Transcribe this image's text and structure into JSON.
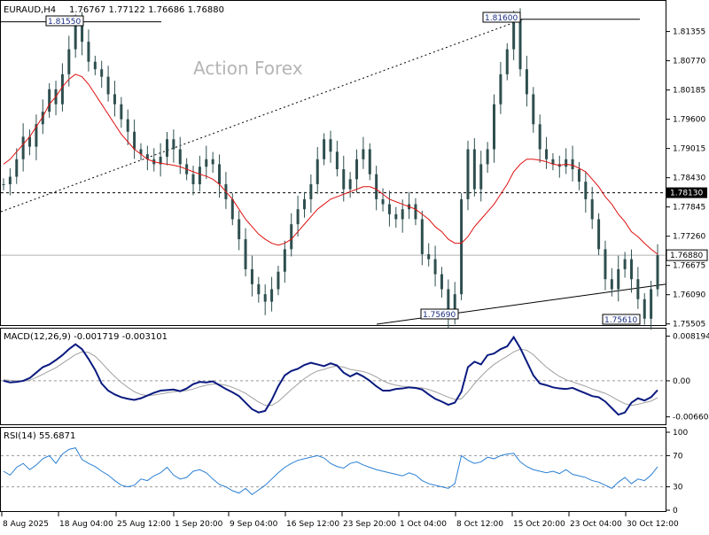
{
  "header": {
    "symbol": "EURAUD,H4",
    "ohlc": "1.76767 1.77122 1.76686 1.76880"
  },
  "watermark": "Action Forex",
  "colors": {
    "candle": "#2f4f4f",
    "ma": "#e01010",
    "macd": "#0a1a80",
    "signal": "#a0a0a0",
    "rsi": "#2a7fd4",
    "grid": "#000000",
    "price_line": "#b0b0b0"
  },
  "chart_data": [
    {
      "type": "line",
      "name": "price",
      "ylim": [
        1.755,
        1.8195
      ],
      "y_ticks": [
        "1.81355",
        "1.80770",
        "1.80185",
        "1.79600",
        "1.79015",
        "1.78430",
        "1.77845",
        "1.77260",
        "1.76675",
        "1.76090",
        "1.75505"
      ],
      "current_price_label": "1.76880",
      "level_label": "1.78130",
      "level_value": 1.7813,
      "annotations": [
        "1.81550",
        "1.81600",
        "1.75690",
        "1.75610"
      ],
      "x_ticks": [
        "8 Aug 2025",
        "18 Aug 04:00",
        "25 Aug 12:00",
        "1 Sep 20:00",
        "9 Sep 04:00",
        "16 Sep 12:00",
        "23 Sep 20:00",
        "1 Oct 04:00",
        "8 Oct 12:00",
        "15 Oct 20:00",
        "23 Oct 04:00",
        "30 Oct 12:00"
      ],
      "series": [
        {
          "values": [
            1.783,
            1.7845,
            1.788,
            1.7925,
            1.7905,
            1.795,
            1.7975,
            1.802,
            1.799,
            1.805,
            1.81,
            1.8155,
            1.8115,
            1.8075,
            1.806,
            1.8045,
            1.801,
            1.799,
            1.796,
            1.7935,
            1.79,
            1.789,
            1.788,
            1.787,
            1.7885,
            1.792,
            1.79,
            1.787,
            1.785,
            1.783,
            1.7865,
            1.788,
            1.787,
            1.783,
            1.78,
            1.776,
            1.772,
            1.766,
            1.763,
            1.761,
            1.7595,
            1.762,
            1.7655,
            1.77,
            1.775,
            1.778,
            1.78,
            1.783,
            1.788,
            1.792,
            1.7895,
            1.786,
            1.782,
            1.784,
            1.788,
            1.79,
            1.785,
            1.78,
            1.779,
            1.777,
            1.776,
            1.778,
            1.779,
            1.776,
            1.769,
            1.768,
            1.765,
            1.762,
            1.7569,
            1.761,
            1.78,
            1.79,
            1.782,
            1.787,
            1.79,
            1.799,
            1.805,
            1.81,
            1.816,
            1.806,
            1.801,
            1.795,
            1.79,
            1.788,
            1.787,
            1.7865,
            1.788,
            1.786,
            1.7835,
            1.78,
            1.776,
            1.77,
            1.764,
            1.762,
            1.766,
            1.768,
            1.764,
            1.76,
            1.7561,
            1.762,
            1.7688
          ]
        },
        {
          "name": "MA",
          "values": [
            1.787,
            1.788,
            1.7895,
            1.791,
            1.7925,
            1.7945,
            1.7965,
            1.799,
            1.8005,
            1.8025,
            1.804,
            1.805,
            1.8045,
            1.803,
            1.801,
            1.799,
            1.797,
            1.795,
            1.793,
            1.7915,
            1.79,
            1.789,
            1.788,
            1.7875,
            1.7872,
            1.787,
            1.7868,
            1.7865,
            1.786,
            1.7855,
            1.785,
            1.7846,
            1.784,
            1.783,
            1.7815,
            1.78,
            1.778,
            1.776,
            1.7745,
            1.773,
            1.772,
            1.7712,
            1.7708,
            1.7712,
            1.772,
            1.7735,
            1.775,
            1.7765,
            1.778,
            1.779,
            1.78,
            1.7805,
            1.781,
            1.7815,
            1.782,
            1.7825,
            1.7825,
            1.782,
            1.781,
            1.78,
            1.7795,
            1.779,
            1.7785,
            1.778,
            1.777,
            1.776,
            1.7745,
            1.7735,
            1.772,
            1.7712,
            1.7712,
            1.7725,
            1.7745,
            1.776,
            1.7775,
            1.779,
            1.781,
            1.783,
            1.7855,
            1.787,
            1.788,
            1.788,
            1.7878,
            1.7875,
            1.787,
            1.7868,
            1.787,
            1.7868,
            1.7862,
            1.7855,
            1.784,
            1.7825,
            1.7805,
            1.779,
            1.777,
            1.7755,
            1.7735,
            1.7725,
            1.7712,
            1.77,
            1.769
          ]
        }
      ]
    },
    {
      "type": "line",
      "title": "MACD(12,26,9) -0.001719 -0.003101",
      "ylim": [
        -0.0078,
        0.0094
      ],
      "y_ticks": [
        "0.008194",
        "0.00",
        "-0.006604"
      ],
      "series": [
        {
          "name": "MACD",
          "values": [
            0.0,
            -0.0003,
            -0.0002,
            0.0,
            0.0005,
            0.0015,
            0.0025,
            0.003,
            0.0038,
            0.0047,
            0.0058,
            0.0067,
            0.0058,
            0.004,
            0.002,
            -0.0005,
            -0.0018,
            -0.0025,
            -0.003,
            -0.0033,
            -0.0035,
            -0.0032,
            -0.0027,
            -0.0022,
            -0.0018,
            -0.0017,
            -0.0016,
            -0.0019,
            -0.0014,
            -0.0006,
            -0.0002,
            -0.0003,
            -0.0001,
            -0.0008,
            -0.0015,
            -0.0021,
            -0.0028,
            -0.004,
            -0.0052,
            -0.0058,
            -0.0055,
            -0.0035,
            -0.001,
            0.001,
            0.0018,
            0.0022,
            0.0029,
            0.0033,
            0.003,
            0.0027,
            0.0032,
            0.0028,
            0.0015,
            0.0008,
            0.0014,
            0.0008,
            0.0,
            -0.001,
            -0.0018,
            -0.0018,
            -0.0015,
            -0.0014,
            -0.0012,
            -0.0013,
            -0.0016,
            -0.0025,
            -0.0033,
            -0.0038,
            -0.0044,
            -0.004,
            -0.002,
            0.0025,
            0.0035,
            0.003,
            0.0047,
            0.005,
            0.0058,
            0.0063,
            0.008,
            0.006,
            0.0035,
            0.001,
            -0.0005,
            -0.0008,
            -0.0012,
            -0.0014,
            -0.0015,
            -0.0013,
            -0.0018,
            -0.0023,
            -0.0028,
            -0.003,
            -0.0038,
            -0.005,
            -0.0062,
            -0.0058,
            -0.004,
            -0.0032,
            -0.0036,
            -0.003,
            -0.0017
          ]
        },
        {
          "name": "Signal",
          "values": [
            0.0002,
            0.0001,
            0.0,
            -0.0001,
            0.0001,
            0.0006,
            0.0012,
            0.0018,
            0.0024,
            0.0032,
            0.004,
            0.0048,
            0.0053,
            0.0052,
            0.0045,
            0.0033,
            0.002,
            0.0008,
            -0.0003,
            -0.0012,
            -0.002,
            -0.0025,
            -0.0027,
            -0.0026,
            -0.0024,
            -0.0022,
            -0.002,
            -0.0019,
            -0.0018,
            -0.0015,
            -0.0011,
            -0.0008,
            -0.0006,
            -0.0006,
            -0.0008,
            -0.0012,
            -0.0017,
            -0.0023,
            -0.0031,
            -0.0039,
            -0.0045,
            -0.0045,
            -0.0038,
            -0.0027,
            -0.0016,
            -0.0006,
            0.0004,
            0.0012,
            0.0018,
            0.0021,
            0.0025,
            0.0027,
            0.0025,
            0.0021,
            0.0019,
            0.0017,
            0.0013,
            0.0007,
            0.0,
            -0.0005,
            -0.0008,
            -0.001,
            -0.0011,
            -0.0012,
            -0.0013,
            -0.0016,
            -0.002,
            -0.0025,
            -0.003,
            -0.0034,
            -0.0033,
            -0.002,
            -0.0005,
            0.0008,
            0.002,
            0.003,
            0.0038,
            0.0045,
            0.0053,
            0.0058,
            0.0056,
            0.0048,
            0.0036,
            0.0025,
            0.0016,
            0.0008,
            0.0002,
            -0.0002,
            -0.0006,
            -0.001,
            -0.0015,
            -0.0019,
            -0.0023,
            -0.0029,
            -0.0036,
            -0.0042,
            -0.0045,
            -0.0043,
            -0.004,
            -0.0037,
            -0.0031
          ]
        }
      ]
    },
    {
      "type": "line",
      "title": "RSI(14) 55.6871",
      "ylim": [
        0,
        100
      ],
      "y_ticks": [
        "100",
        "70",
        "30",
        "0"
      ],
      "series": [
        {
          "name": "RSI",
          "values": [
            50,
            45,
            55,
            60,
            52,
            58,
            66,
            70,
            60,
            72,
            78,
            80,
            65,
            60,
            56,
            50,
            45,
            38,
            32,
            30,
            32,
            40,
            38,
            44,
            48,
            55,
            45,
            40,
            42,
            50,
            52,
            48,
            40,
            33,
            30,
            25,
            22,
            28,
            20,
            26,
            32,
            40,
            48,
            55,
            60,
            64,
            66,
            68,
            70,
            67,
            60,
            56,
            54,
            60,
            62,
            58,
            55,
            52,
            50,
            48,
            46,
            44,
            48,
            45,
            38,
            34,
            32,
            30,
            28,
            34,
            70,
            64,
            60,
            62,
            68,
            66,
            70,
            72,
            73,
            62,
            56,
            52,
            50,
            48,
            50,
            47,
            52,
            46,
            44,
            42,
            38,
            36,
            32,
            28,
            36,
            42,
            34,
            40,
            38,
            45,
            55.7
          ]
        }
      ]
    }
  ]
}
